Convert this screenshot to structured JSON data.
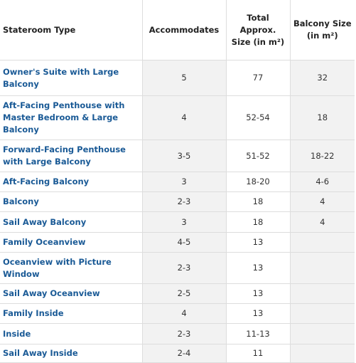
{
  "table": {
    "header": [
      "Stateroom Type",
      "Accommodates",
      "Total Approx. Size (in m²)",
      "Balcony Size (in m²)"
    ],
    "rows": [
      [
        "Owner's Suite with Large Balcony",
        "5",
        "77",
        "32"
      ],
      [
        "Aft-Facing Penthouse with Master Bedroom & Large Balcony",
        "4",
        "52-54",
        "18"
      ],
      [
        "Forward-Facing Penthouse with Large Balcony",
        "3-5",
        "51-52",
        "18-22"
      ],
      [
        "Aft-Facing Balcony",
        "3",
        "18-20",
        "4-6"
      ],
      [
        "Balcony",
        "2-3",
        "18",
        "4"
      ],
      [
        "Sail Away Balcony",
        "3",
        "18",
        "4"
      ],
      [
        "Family Oceanview",
        "4-5",
        "13",
        null
      ],
      [
        "Oceanview with Picture Window",
        "2-3",
        "13",
        null
      ],
      [
        "Sail Away Oceanview",
        "2-5",
        "13",
        null
      ],
      [
        "Family Inside",
        "4",
        "13",
        null
      ],
      [
        "Inside",
        "2-3",
        "11-13",
        null
      ],
      [
        "Sail Away Inside",
        "2-4",
        "11",
        null
      ]
    ]
  }
}
